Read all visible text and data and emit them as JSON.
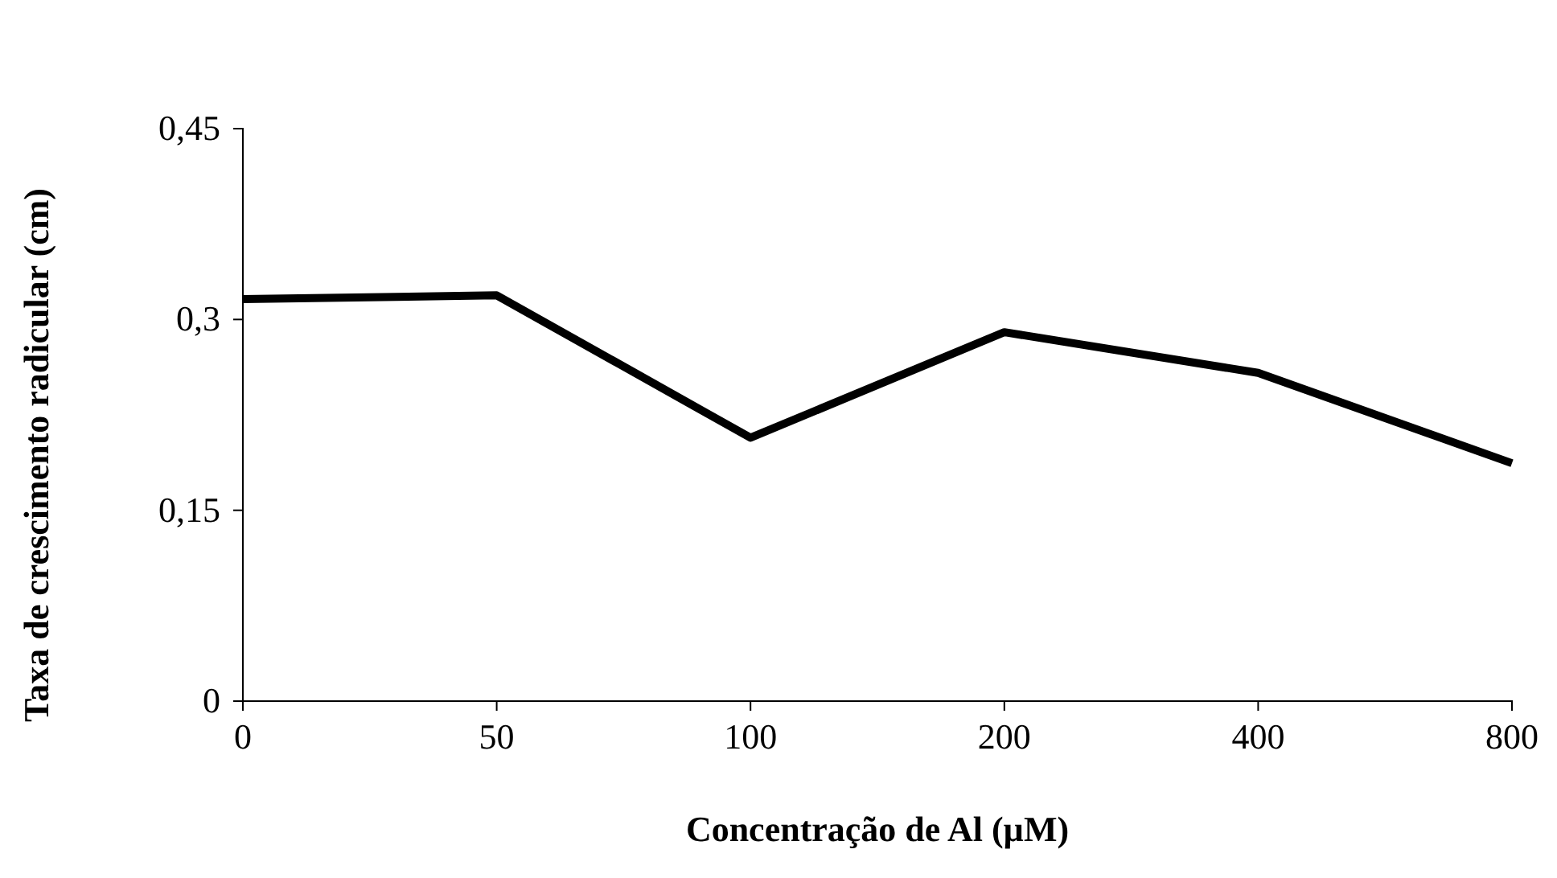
{
  "chart_data": {
    "type": "line",
    "xlabel": "Concentração de Al (µM)",
    "ylabel": "Taxa de crescimento radicular (cm)",
    "categories": [
      "0",
      "50",
      "100",
      "200",
      "400",
      "800"
    ],
    "series": [
      {
        "color": "#000000",
        "values": [
          0.316,
          0.319,
          0.207,
          0.29,
          0.258,
          0.187
        ]
      }
    ],
    "ylim": [
      0,
      0.45
    ],
    "yticks": [
      {
        "value": 0,
        "label": "0"
      },
      {
        "value": 0.15,
        "label": "0,15"
      },
      {
        "value": 0.3,
        "label": "0,3"
      },
      {
        "value": 0.45,
        "label": "0,45"
      }
    ],
    "grid": false,
    "marker": "none",
    "line_style": "solid"
  }
}
